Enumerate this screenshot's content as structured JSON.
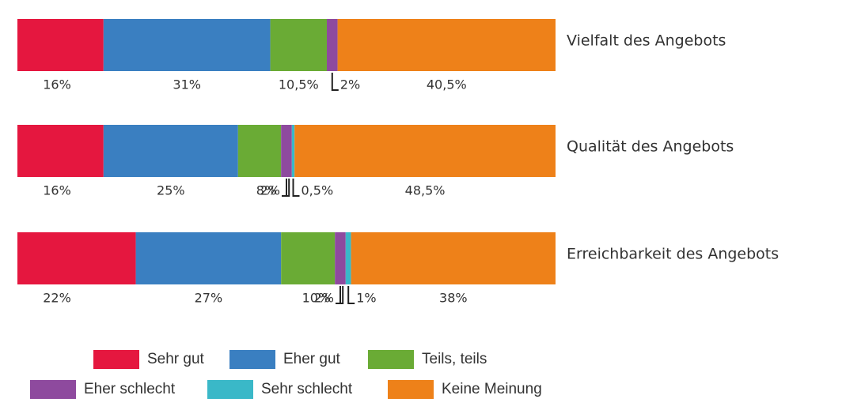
{
  "chart_data": {
    "type": "stacked-bar",
    "categories": [
      "Vielfalt des Angebots",
      "Qualität des Angebots",
      "Erreichbarkeit des Angebots"
    ],
    "series": [
      {
        "name": "Sehr gut",
        "color": "#e5173f",
        "values": [
          16,
          16,
          22
        ],
        "value_labels": [
          "16%",
          "16%",
          "22%"
        ]
      },
      {
        "name": "Eher gut",
        "color": "#3a7fc1",
        "values": [
          31,
          25,
          27
        ],
        "value_labels": [
          "31%",
          "25%",
          "27%"
        ]
      },
      {
        "name": "Teils, teils",
        "color": "#6aab35",
        "values": [
          10.5,
          8,
          10
        ],
        "value_labels": [
          "10,5%",
          "8%",
          "10%"
        ]
      },
      {
        "name": "Eher schlecht",
        "color": "#8e4a9e",
        "values": [
          2,
          2,
          2
        ],
        "value_labels": [
          "2%",
          "2%",
          "2%"
        ]
      },
      {
        "name": "Sehr schlecht",
        "color": "#3ab8c8",
        "values": [
          null,
          0.5,
          1
        ],
        "value_labels": [
          null,
          "0,5%",
          "1%"
        ]
      },
      {
        "name": "Keine Meinung",
        "color": "#ee8119",
        "values": [
          40.5,
          48.5,
          38
        ],
        "value_labels": [
          "40,5%",
          "48,5%",
          "38%"
        ]
      }
    ],
    "xlim": [
      0,
      100
    ]
  }
}
